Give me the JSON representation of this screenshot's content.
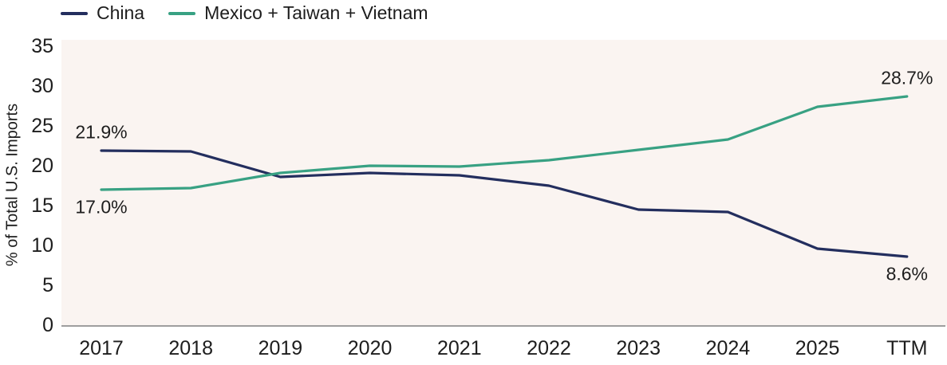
{
  "chart_data": {
    "type": "line",
    "title": "",
    "xlabel": "",
    "ylabel": "% of Total U.S. Imports",
    "categories": [
      "2017",
      "2018",
      "2019",
      "2020",
      "2021",
      "2022",
      "2023",
      "2024",
      "2025",
      "TTM"
    ],
    "series": [
      {
        "name": "China",
        "color": "#232e5e",
        "values": [
          21.9,
          21.8,
          18.6,
          19.1,
          18.8,
          17.5,
          14.5,
          14.2,
          9.6,
          8.6
        ]
      },
      {
        "name": "Mexico + Taiwan + Vietnam",
        "color": "#38a183",
        "values": [
          17.0,
          17.2,
          19.1,
          20.0,
          19.9,
          20.7,
          22.0,
          23.3,
          27.4,
          28.7
        ]
      }
    ],
    "ylim": [
      0,
      35
    ],
    "yticks": [
      0,
      5,
      10,
      15,
      20,
      25,
      30,
      35
    ],
    "grid": false,
    "legend_position": "top-left",
    "annotations": [
      {
        "text": "21.9%",
        "series": 0,
        "index": 0,
        "placement": "above"
      },
      {
        "text": "17.0%",
        "series": 1,
        "index": 0,
        "placement": "below"
      },
      {
        "text": "28.7%",
        "series": 1,
        "index": 9,
        "placement": "above"
      },
      {
        "text": "8.6%",
        "series": 0,
        "index": 9,
        "placement": "below"
      }
    ],
    "colors": {
      "plot_bg": "#faf4f1",
      "axis_line": "#9e9e9e",
      "text": "#1d1d1d"
    }
  }
}
